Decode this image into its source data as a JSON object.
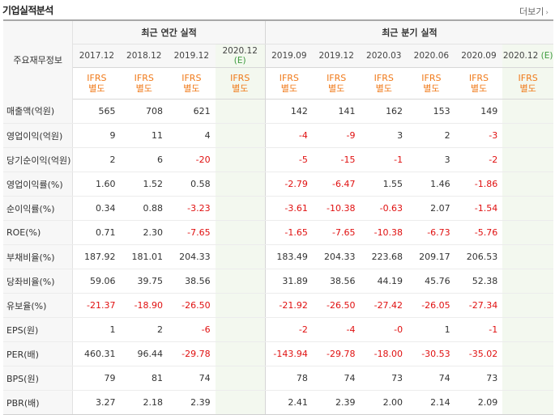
{
  "header": {
    "title": "기업실적분석",
    "more_label": "더보기"
  },
  "table": {
    "label_header": "주요재무정보",
    "annual_header": "최근 연간 실적",
    "quarterly_header": "최근 분기 실적",
    "annual_periods": [
      {
        "date": "2017.12",
        "est": ""
      },
      {
        "date": "2018.12",
        "est": ""
      },
      {
        "date": "2019.12",
        "est": ""
      },
      {
        "date": "2020.12",
        "est": "(E)"
      }
    ],
    "quarter_periods": [
      {
        "date": "2019.09",
        "est": ""
      },
      {
        "date": "2019.12",
        "est": ""
      },
      {
        "date": "2020.03",
        "est": ""
      },
      {
        "date": "2020.06",
        "est": ""
      },
      {
        "date": "2020.09",
        "est": ""
      },
      {
        "date": "2020.12",
        "est": "(E)"
      }
    ],
    "basis": {
      "line1": "IFRS",
      "line2": "별도"
    },
    "rows": [
      {
        "label": "매출액(억원)",
        "annual": [
          "565",
          "708",
          "621",
          ""
        ],
        "quarter": [
          "142",
          "141",
          "162",
          "153",
          "149",
          ""
        ]
      },
      {
        "label": "영업이익(억원)",
        "annual": [
          "9",
          "11",
          "4",
          ""
        ],
        "quarter": [
          "-4",
          "-9",
          "3",
          "2",
          "-3",
          ""
        ]
      },
      {
        "label": "당기순이익(억원)",
        "annual": [
          "2",
          "6",
          "-20",
          ""
        ],
        "quarter": [
          "-5",
          "-15",
          "-1",
          "3",
          "-2",
          ""
        ]
      },
      {
        "label": "영업이익률(%)",
        "annual": [
          "1.60",
          "1.52",
          "0.58",
          ""
        ],
        "quarter": [
          "-2.79",
          "-6.47",
          "1.55",
          "1.46",
          "-1.86",
          ""
        ]
      },
      {
        "label": "순이익률(%)",
        "annual": [
          "0.34",
          "0.88",
          "-3.23",
          ""
        ],
        "quarter": [
          "-3.61",
          "-10.38",
          "-0.63",
          "2.07",
          "-1.54",
          ""
        ]
      },
      {
        "label": "ROE(%)",
        "annual": [
          "0.71",
          "2.30",
          "-7.65",
          ""
        ],
        "quarter": [
          "-1.65",
          "-7.65",
          "-10.38",
          "-6.73",
          "-5.76",
          ""
        ]
      },
      {
        "label": "부채비율(%)",
        "annual": [
          "187.92",
          "181.01",
          "204.33",
          ""
        ],
        "quarter": [
          "183.49",
          "204.33",
          "223.68",
          "209.17",
          "206.53",
          ""
        ]
      },
      {
        "label": "당좌비율(%)",
        "annual": [
          "59.06",
          "39.75",
          "38.56",
          ""
        ],
        "quarter": [
          "31.89",
          "38.56",
          "44.19",
          "45.76",
          "52.38",
          ""
        ]
      },
      {
        "label": "유보율(%)",
        "annual": [
          "-21.37",
          "-18.90",
          "-26.50",
          ""
        ],
        "quarter": [
          "-21.92",
          "-26.50",
          "-27.42",
          "-26.05",
          "-27.34",
          ""
        ]
      },
      {
        "label": "EPS(원)",
        "annual": [
          "1",
          "2",
          "-6",
          ""
        ],
        "quarter": [
          "-2",
          "-4",
          "-0",
          "1",
          "-1",
          ""
        ]
      },
      {
        "label": "PER(배)",
        "annual": [
          "460.31",
          "96.44",
          "-29.78",
          ""
        ],
        "quarter": [
          "-143.94",
          "-29.78",
          "-18.00",
          "-30.53",
          "-35.02",
          ""
        ]
      },
      {
        "label": "BPS(원)",
        "annual": [
          "79",
          "81",
          "74",
          ""
        ],
        "quarter": [
          "78",
          "74",
          "73",
          "74",
          "73",
          ""
        ]
      },
      {
        "label": "PBR(배)",
        "annual": [
          "3.27",
          "2.18",
          "2.39",
          ""
        ],
        "quarter": [
          "2.41",
          "2.39",
          "2.00",
          "2.14",
          "2.09",
          ""
        ]
      }
    ]
  },
  "colors": {
    "negative": "#e01010",
    "basis": "#f07a1a",
    "estimate": "#3c9a3c",
    "estimate_bg": "#f3f8ef"
  }
}
